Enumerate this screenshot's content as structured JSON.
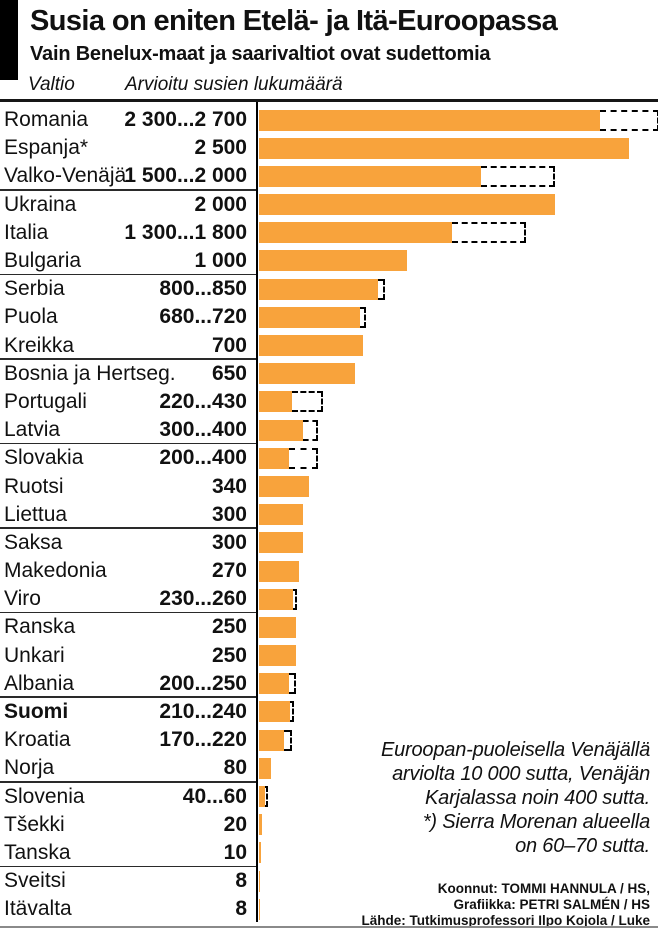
{
  "header": {
    "title": "Susia on eniten Etelä- ja Itä-Euroopassa",
    "subtitle": "Vain Benelux-maat ja saarivaltiot ovat sudettomia",
    "col_country": "Valtio",
    "col_value": "Arvioitu susien lukumäärä"
  },
  "annotation": {
    "lines": [
      "Euroopan-puoleisella Venäjällä",
      "arviolta 10 000 sutta, Venäjän",
      "Karjalassa noin 400 sutta.",
      "*) Sierra Morenan alueella",
      "on 60–70 sutta."
    ]
  },
  "credits": {
    "lines": [
      "Koonnut: TOMMI HANNULA / HS,",
      "Grafiikka: PETRI SALMÉN / HS",
      "Lähde: Tutkimusprofessori Ilpo Kojola / Luke"
    ]
  },
  "chart_data": {
    "type": "bar",
    "orientation": "horizontal",
    "title": "Susia on eniten Etelä- ja Itä-Euroopassa",
    "xlabel": "Arvioitu susien lukumäärä",
    "x_range": [
      0,
      2700
    ],
    "bar_color": "#F8A33C",
    "range_style": "dashed-outline-from-min-to-max",
    "grid": false,
    "legend": false,
    "rows": [
      {
        "country": "Romania",
        "label": "2 300...2 700",
        "min": 2300,
        "max": 2700
      },
      {
        "country": "Espanja*",
        "label": "2 500",
        "min": 2500,
        "max": 2500
      },
      {
        "country": "Valko-Venäjä",
        "label": "1 500...2 000",
        "min": 1500,
        "max": 2000
      },
      {
        "country": "Ukraina",
        "label": "2 000",
        "min": 2000,
        "max": 2000
      },
      {
        "country": "Italia",
        "label": "1 300...1 800",
        "min": 1300,
        "max": 1800
      },
      {
        "country": "Bulgaria",
        "label": "1 000",
        "min": 1000,
        "max": 1000
      },
      {
        "country": "Serbia",
        "label": "800...850",
        "min": 800,
        "max": 850
      },
      {
        "country": "Puola",
        "label": "680...720",
        "min": 680,
        "max": 720
      },
      {
        "country": "Kreikka",
        "label": "700",
        "min": 700,
        "max": 700
      },
      {
        "country": "Bosnia ja Hertseg.",
        "label": "650",
        "min": 650,
        "max": 650
      },
      {
        "country": "Portugali",
        "label": "220...430",
        "min": 220,
        "max": 430
      },
      {
        "country": "Latvia",
        "label": "300...400",
        "min": 300,
        "max": 400
      },
      {
        "country": "Slovakia",
        "label": "200...400",
        "min": 200,
        "max": 400
      },
      {
        "country": "Ruotsi",
        "label": "340",
        "min": 340,
        "max": 340
      },
      {
        "country": "Liettua",
        "label": "300",
        "min": 300,
        "max": 300
      },
      {
        "country": "Saksa",
        "label": "300",
        "min": 300,
        "max": 300
      },
      {
        "country": "Makedonia",
        "label": "270",
        "min": 270,
        "max": 270
      },
      {
        "country": "Viro",
        "label": "230...260",
        "min": 230,
        "max": 260
      },
      {
        "country": "Ranska",
        "label": "250",
        "min": 250,
        "max": 250
      },
      {
        "country": "Unkari",
        "label": "250",
        "min": 250,
        "max": 250
      },
      {
        "country": "Albania",
        "label": "200...250",
        "min": 200,
        "max": 250
      },
      {
        "country": "Suomi",
        "label": "210...240",
        "min": 210,
        "max": 240,
        "bold": true
      },
      {
        "country": "Kroatia",
        "label": "170...220",
        "min": 170,
        "max": 220
      },
      {
        "country": "Norja",
        "label": "80",
        "min": 80,
        "max": 80
      },
      {
        "country": "Slovenia",
        "label": "40...60",
        "min": 40,
        "max": 60
      },
      {
        "country": "Tšekki",
        "label": "20",
        "min": 20,
        "max": 20
      },
      {
        "country": "Tanska",
        "label": "10",
        "min": 10,
        "max": 10
      },
      {
        "country": "Sveitsi",
        "label": "8",
        "min": 8,
        "max": 8
      },
      {
        "country": "Itävalta",
        "label": "8",
        "min": 8,
        "max": 8
      }
    ],
    "group_separator_after": [
      3,
      6,
      9,
      12,
      15,
      18,
      21,
      24,
      27
    ]
  }
}
